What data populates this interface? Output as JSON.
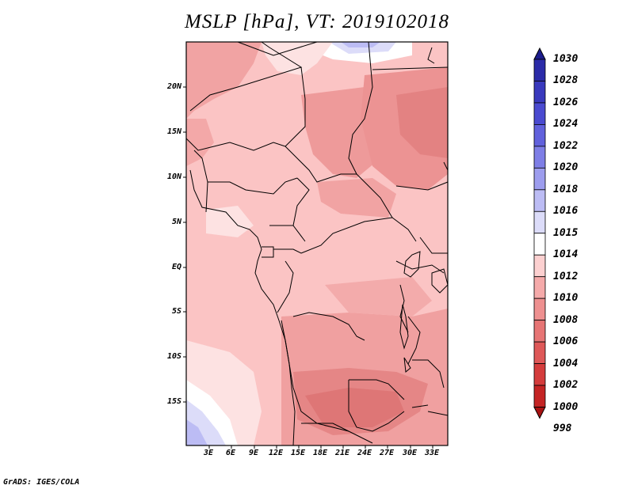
{
  "title": "MSLP [hPa], VT: 2019102018",
  "y_axis_labels": [
    "20N",
    "15N",
    "10N",
    "5N",
    "EQ",
    "5S",
    "10S",
    "15S"
  ],
  "x_axis_labels": [
    "3E",
    "6E",
    "9E",
    "12E",
    "15E",
    "18E",
    "21E",
    "24E",
    "27E",
    "30E",
    "33E"
  ],
  "colorbar": {
    "levels": [
      "1030",
      "1028",
      "1026",
      "1024",
      "1022",
      "1020",
      "1018",
      "1016",
      "1015",
      "1014",
      "1012",
      "1010",
      "1008",
      "1006",
      "1004",
      "1002",
      "1000",
      "998"
    ],
    "colors": [
      "#1c1c8c",
      "#2b2ba8",
      "#3939bd",
      "#4a4ad0",
      "#6161dc",
      "#7e7ee6",
      "#9d9dee",
      "#bcbcf4",
      "#dcdcf9",
      "#ffffff",
      "#fcd0d0",
      "#f5aaaa",
      "#ee9090",
      "#e77575",
      "#de5858",
      "#d43c3c",
      "#c42424",
      "#a81212"
    ]
  },
  "map_colors": {
    "base": "#fbc4c4",
    "mid": "#f4a6a6",
    "deep": "#ea8a8a",
    "darker": "#e17474",
    "light": "#fde2e2",
    "blue": "#d8d8f6",
    "bluedeep": "#b8b8ee"
  },
  "footer": "GrADS: IGES/COLA"
}
